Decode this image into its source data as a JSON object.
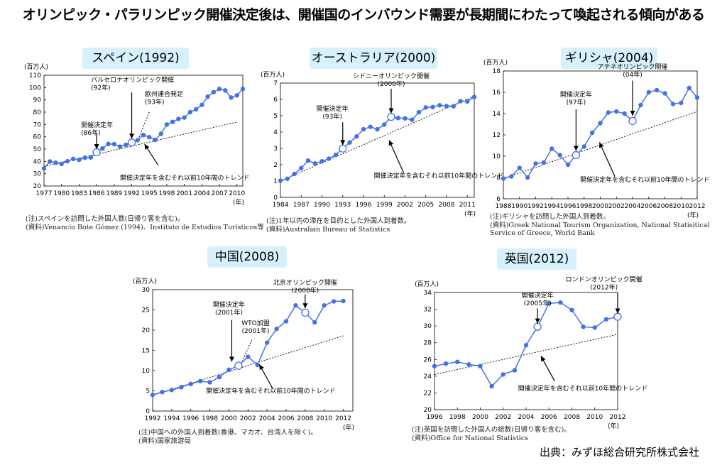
{
  "title": "オリンピック・パラリンピック開催決定後は、開催国のインバウンド需要が長期間にわたって喚起される傾向がある",
  "source": "出典：みずほ総合研究所株式会社",
  "chart_data": [
    {
      "id": "spain",
      "type": "line",
      "panel_title": "スペイン(1992)",
      "ylabel": "(百万人)",
      "xlabel": "(年)",
      "ylim": [
        20,
        110
      ],
      "yticks": [
        20,
        30,
        40,
        50,
        60,
        70,
        80,
        90,
        100,
        110
      ],
      "xlim": [
        1977,
        2011
      ],
      "xticks": [
        1977,
        1980,
        1983,
        1986,
        1989,
        1992,
        1995,
        1998,
        2001,
        2004,
        2007,
        2010
      ],
      "x": [
        1977,
        1978,
        1979,
        1980,
        1981,
        1982,
        1983,
        1984,
        1985,
        1986,
        1987,
        1988,
        1989,
        1990,
        1991,
        1992,
        1993,
        1994,
        1995,
        1996,
        1997,
        1998,
        1999,
        2000,
        2001,
        2002,
        2003,
        2004,
        2005,
        2006,
        2007,
        2008,
        2009,
        2010,
        2011
      ],
      "values": [
        34.3,
        39.9,
        38.9,
        38.0,
        40.1,
        42.0,
        41.3,
        43.0,
        43.2,
        47.4,
        50.5,
        54.2,
        54.0,
        52.0,
        53.5,
        55.3,
        57.3,
        61.4,
        59.7,
        57.5,
        62.4,
        70.0,
        72.1,
        74.5,
        75.6,
        80.0,
        82.3,
        85.9,
        92.6,
        96.2,
        98.9,
        97.7,
        91.9,
        93.7,
        98.9
      ],
      "highlight": [
        1986,
        1992
      ],
      "trend": [
        [
          1977,
          36.0
        ],
        [
          2010,
          72.0
        ]
      ],
      "annotations": {
        "decision": "開催決定年\n(86年)",
        "games": "バルセロナオリンピック開催\n(92年)",
        "eu": "欧州連合発足\n(93年)",
        "trend": "開催決定年を含むそれ以前10年間のトレンド"
      },
      "notes": [
        "(注)スペインを訪問した外国人数(日帰り客を含む)。",
        "(資料)Venancio Bote Gómez (1994)、Instituto de Estudios Turisticos等"
      ]
    },
    {
      "id": "australia",
      "type": "line",
      "panel_title": "オーストラリア(2000)",
      "ylabel": "(百万人)",
      "xlabel": "(年)",
      "ylim": [
        0,
        7
      ],
      "yticks": [
        0,
        1,
        2,
        3,
        4,
        5,
        6,
        7
      ],
      "xlim": [
        1984,
        2012
      ],
      "xticks": [
        1984,
        1987,
        1990,
        1993,
        1996,
        1999,
        2002,
        2005,
        2008,
        2011
      ],
      "x": [
        1984,
        1985,
        1986,
        1987,
        1988,
        1989,
        1990,
        1991,
        1992,
        1993,
        1994,
        1995,
        1996,
        1997,
        1998,
        1999,
        2000,
        2001,
        2002,
        2003,
        2004,
        2005,
        2006,
        2007,
        2008,
        2009,
        2010,
        2011,
        2012
      ],
      "values": [
        1.02,
        1.14,
        1.43,
        1.79,
        2.25,
        2.08,
        2.21,
        2.37,
        2.6,
        2.99,
        3.36,
        3.73,
        4.17,
        4.32,
        4.17,
        4.46,
        4.93,
        4.86,
        4.84,
        4.75,
        5.21,
        5.5,
        5.53,
        5.64,
        5.59,
        5.58,
        5.89,
        5.87,
        6.15
      ],
      "highlight": [
        1993,
        2000
      ],
      "trend": [
        [
          1984,
          1.0
        ],
        [
          2012,
          6.2
        ]
      ],
      "annotations": {
        "decision": "開催決定年\n(93年)",
        "games": "シドニーオリンピック開催\n(2000年)",
        "trend": "開催決定年を含むそれ以前10年間のトレンド"
      },
      "notes": [
        "(注)1年以内の滞在を目的とした外国人到着数。",
        "(資料)Australian Bureau of Statistics"
      ]
    },
    {
      "id": "greece",
      "type": "line",
      "panel_title": "ギリシャ(2004)",
      "ylabel": "(百万人)",
      "xlabel": "(年)",
      "ylim": [
        6,
        18
      ],
      "yticks": [
        6,
        8,
        10,
        12,
        14,
        16,
        18
      ],
      "xlim": [
        1988,
        2012
      ],
      "xticks": [
        1988,
        1990,
        1992,
        1994,
        1996,
        1998,
        2000,
        2002,
        2004,
        2006,
        2008,
        2010,
        2012
      ],
      "x": [
        1988,
        1989,
        1990,
        1991,
        1992,
        1993,
        1994,
        1995,
        1996,
        1997,
        1998,
        1999,
        2000,
        2001,
        2002,
        2003,
        2004,
        2005,
        2006,
        2007,
        2008,
        2009,
        2010,
        2011,
        2012
      ],
      "values": [
        7.9,
        8.1,
        8.9,
        8.0,
        9.3,
        9.4,
        10.7,
        10.1,
        9.2,
        10.1,
        10.9,
        12.2,
        13.1,
        14.1,
        14.2,
        14.0,
        13.3,
        14.8,
        16.0,
        16.2,
        15.9,
        14.9,
        15.0,
        16.4,
        15.5
      ],
      "highlight": [
        1997,
        2004
      ],
      "trend": [
        [
          1988,
          7.9
        ],
        [
          2012,
          14.2
        ]
      ],
      "annotations": {
        "decision": "開催決定年\n(97年)",
        "games": "アテネオリンピック開催\n(04年)",
        "trend": "開催決定年を含むそれ以前10年間のトレンド"
      },
      "notes": [
        "(注)ギリシャを訪問した外国人到着数。",
        "(資料)Greek National Tourism Organization, National Statisitical Service of Greece, World Bank"
      ]
    },
    {
      "id": "china",
      "type": "line",
      "panel_title": "中国(2008)",
      "ylabel": "(百万人)",
      "xlabel": "(年)",
      "ylim": [
        0,
        30
      ],
      "yticks": [
        0,
        5,
        10,
        15,
        20,
        25,
        30
      ],
      "xlim": [
        1992,
        2013
      ],
      "xticks": [
        1992,
        1994,
        1996,
        1998,
        2000,
        2002,
        2004,
        2006,
        2008,
        2010,
        2012
      ],
      "x": [
        1992,
        1993,
        1994,
        1995,
        1996,
        1997,
        1998,
        1999,
        2000,
        2001,
        2002,
        2003,
        2004,
        2005,
        2006,
        2007,
        2008,
        2009,
        2010,
        2011,
        2012
      ],
      "values": [
        4.0,
        4.7,
        5.2,
        5.9,
        6.7,
        7.4,
        7.1,
        8.4,
        10.2,
        11.2,
        13.4,
        11.4,
        16.9,
        20.3,
        22.2,
        26.1,
        24.3,
        21.9,
        26.1,
        27.1,
        27.2
      ],
      "highlight": [
        2001,
        2008
      ],
      "trend": [
        [
          1992,
          3.9
        ],
        [
          2012,
          18.6
        ]
      ],
      "annotations": {
        "decision": "開催決定年\n(2001年)",
        "wto": "WTO加盟\n(2001年)",
        "games": "北京オリンピック開催\n(2008年)",
        "trend": "開催決定年を含むそれ以前10年間のトレンド"
      },
      "notes": [
        "(注)中国への外国人到着数(香港、マカオ、台湾人を除く)。",
        "(資料)国家旅游局"
      ]
    },
    {
      "id": "uk",
      "type": "line",
      "panel_title": "英国(2012)",
      "ylabel": "(百万人)",
      "xlabel": "(年)",
      "ylim": [
        20,
        34
      ],
      "yticks": [
        20,
        22,
        24,
        26,
        28,
        30,
        32,
        34
      ],
      "xlim": [
        1996,
        2012
      ],
      "xticks": [
        1996,
        1998,
        2000,
        2002,
        2004,
        2006,
        2008,
        2010,
        2012
      ],
      "x": [
        1996,
        1997,
        1998,
        1999,
        2000,
        2001,
        2002,
        2003,
        2004,
        2005,
        2006,
        2007,
        2008,
        2009,
        2010,
        2011,
        2012
      ],
      "values": [
        25.2,
        25.5,
        25.7,
        25.4,
        25.2,
        22.8,
        24.2,
        24.7,
        27.7,
        29.9,
        32.7,
        32.8,
        31.9,
        29.9,
        29.8,
        30.8,
        31.1
      ],
      "highlight": [
        2005,
        2012
      ],
      "trend": [
        [
          1996,
          24.2
        ],
        [
          2012,
          29.0
        ]
      ],
      "annotations": {
        "decision": "開催決定年\n(2005年)",
        "games": "ロンドンオリンピック開催\n(2012年)",
        "trend": "開催決定年を含むそれ以前10年間のトレンド"
      },
      "notes": [
        "(注)英国を訪問した外国人の総数(日帰り客を含む)。",
        "(資料)Office for National Statistics"
      ]
    }
  ]
}
